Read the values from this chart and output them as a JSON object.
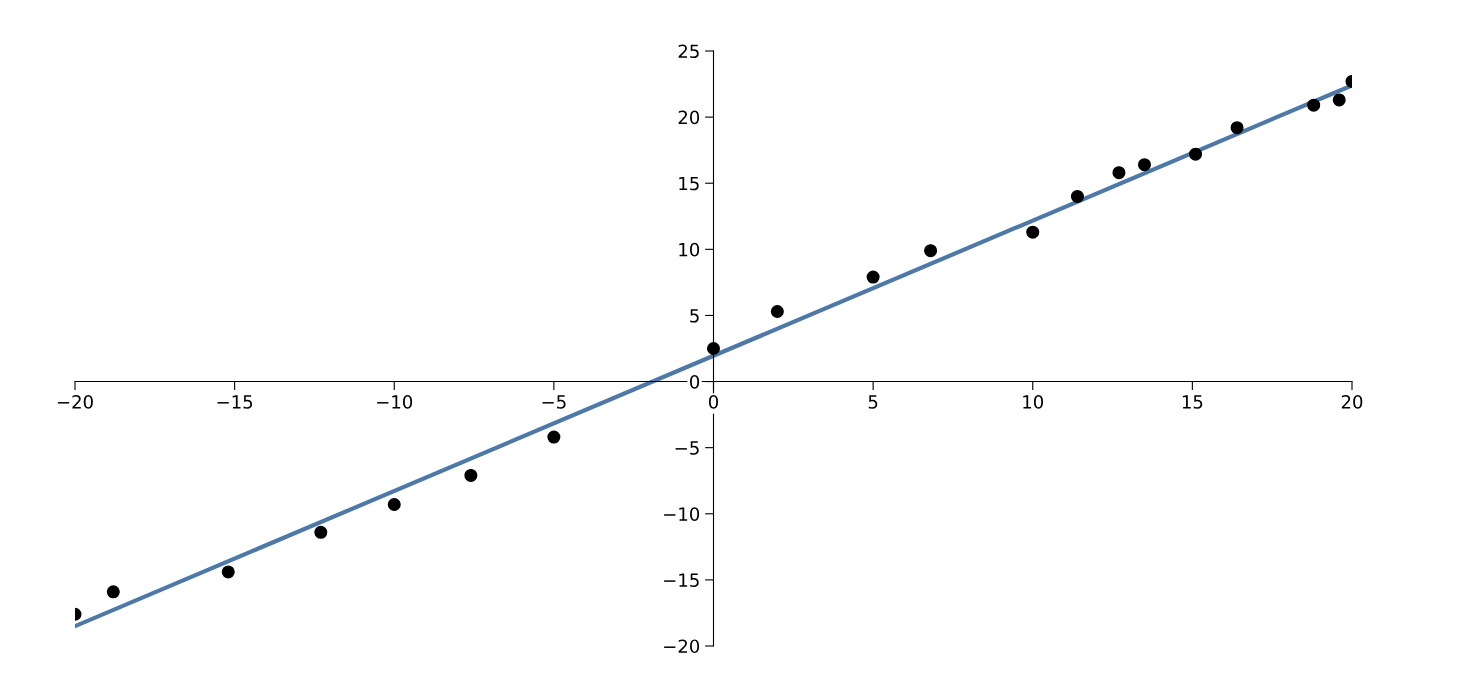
{
  "chart_data": {
    "type": "scatter",
    "xlim": [
      -20,
      20
    ],
    "ylim": [
      -20,
      25
    ],
    "xticks": [
      {
        "value": -20,
        "label": "−20"
      },
      {
        "value": -15,
        "label": "−15"
      },
      {
        "value": -10,
        "label": "−10"
      },
      {
        "value": -5,
        "label": "−5"
      },
      0,
      5,
      10,
      15,
      20
    ],
    "yticks": [
      {
        "value": -20,
        "label": "−20"
      },
      {
        "value": -15,
        "label": "−15"
      },
      {
        "value": -10,
        "label": "−10"
      },
      {
        "value": -5,
        "label": "−5"
      },
      0,
      5,
      10,
      15,
      20,
      25
    ],
    "grid": false,
    "series": [
      {
        "marker": "circle",
        "color": "#000000",
        "x": [
          -20,
          -18.8,
          -15.2,
          -12.3,
          -10.0,
          -7.6,
          -5.0,
          0,
          2.0,
          5.0,
          6.8,
          10.0,
          11.4,
          12.7,
          13.5,
          15.1,
          16.4,
          18.8,
          19.6,
          20
        ],
        "values": [
          -17.6,
          -15.9,
          -14.4,
          -11.4,
          -9.3,
          -7.1,
          -4.2,
          2.5,
          5.3,
          7.9,
          9.9,
          11.3,
          14.0,
          15.8,
          16.4,
          17.2,
          19.2,
          20.9,
          21.3,
          22.7
        ]
      },
      {
        "type": "line",
        "color": "#4e79a7",
        "x": [
          -20,
          20
        ],
        "values": [
          -18.5,
          22.4
        ]
      }
    ]
  }
}
